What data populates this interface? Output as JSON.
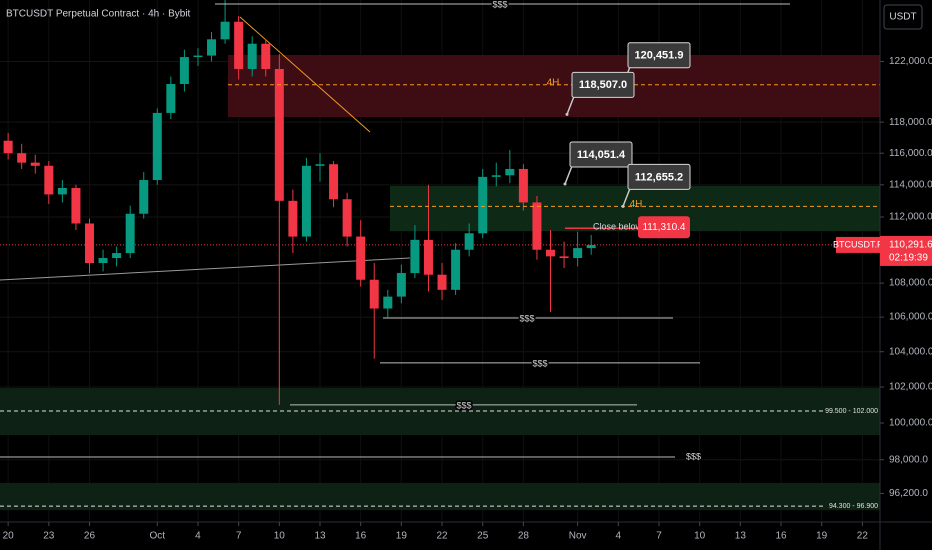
{
  "chart_data": {
    "type": "candlestick",
    "title": "BTCUSDT Perpetual Contract · 4h · Bybit",
    "currency": "USDT",
    "x": [
      0,
      1,
      2,
      3,
      4,
      5,
      6,
      7,
      8,
      9,
      10,
      11,
      12,
      13,
      14,
      15,
      16,
      17,
      18,
      19,
      20,
      21,
      22,
      23,
      24,
      25,
      26,
      27,
      28,
      29,
      30,
      31,
      32,
      33,
      34,
      35,
      36,
      37,
      38,
      39,
      40,
      41,
      42,
      43
    ],
    "open": [
      116800,
      116000,
      115400,
      115200,
      113400,
      113800,
      111600,
      109200,
      109500,
      109800,
      112200,
      114300,
      118600,
      120500,
      122300,
      122400,
      123500,
      124700,
      121500,
      123200,
      121500,
      113000,
      110800,
      115200,
      115300,
      113100,
      110800,
      108200,
      106500,
      107200,
      108600,
      110600,
      108500,
      107600,
      110000,
      111000,
      114500,
      114600,
      115000,
      112900,
      110000,
      109600,
      109500,
      110100
    ],
    "high": [
      117300,
      116600,
      115900,
      115500,
      114300,
      114000,
      111900,
      110000,
      110200,
      112700,
      114800,
      118900,
      121000,
      122800,
      122900,
      124000,
      126200,
      125100,
      123700,
      123500,
      122500,
      113700,
      115700,
      116000,
      115500,
      113500,
      111800,
      109200,
      107600,
      109100,
      111500,
      114000,
      109200,
      110400,
      111600,
      115000,
      115400,
      116200,
      115300,
      113300,
      111200,
      110500,
      111100,
      110900
    ],
    "low": [
      115600,
      115000,
      114700,
      112800,
      112900,
      111200,
      108600,
      108700,
      109000,
      109500,
      111900,
      114000,
      118200,
      120000,
      121700,
      122000,
      123200,
      120800,
      121000,
      121000,
      101000,
      109800,
      110500,
      114200,
      112600,
      110200,
      107800,
      103600,
      106000,
      106800,
      108300,
      107500,
      107000,
      107300,
      109600,
      110700,
      113900,
      114100,
      112400,
      109400,
      106300,
      108900,
      109000,
      109700
    ],
    "close": [
      116000,
      115400,
      115200,
      113400,
      113800,
      111600,
      109200,
      109500,
      109800,
      112200,
      114300,
      118600,
      120500,
      122300,
      122400,
      123500,
      124700,
      121500,
      123200,
      121500,
      113000,
      110800,
      115200,
      115300,
      113100,
      110800,
      108200,
      106500,
      107200,
      108600,
      110600,
      108500,
      107600,
      110000,
      111000,
      114500,
      114600,
      115000,
      112900,
      110000,
      109600,
      109500,
      110100,
      110291.6
    ],
    "up_color": "#089981",
    "down_color": "#f23645",
    "xlim": [
      -0.6,
      64.3
    ],
    "xticks": [
      {
        "value": 0,
        "label": "20"
      },
      {
        "value": 3,
        "label": "23"
      },
      {
        "value": 6,
        "label": "26"
      },
      {
        "value": 11,
        "label": "Oct"
      },
      {
        "value": 14,
        "label": "4"
      },
      {
        "value": 17,
        "label": "7"
      },
      {
        "value": 20,
        "label": "10"
      },
      {
        "value": 23,
        "label": "13"
      },
      {
        "value": 26,
        "label": "16"
      },
      {
        "value": 29,
        "label": "19"
      },
      {
        "value": 32,
        "label": "22"
      },
      {
        "value": 35,
        "label": "25"
      },
      {
        "value": 38,
        "label": "28"
      },
      {
        "value": 42,
        "label": "Nov"
      },
      {
        "value": 45,
        "label": "4"
      },
      {
        "value": 48,
        "label": "7"
      },
      {
        "value": 51,
        "label": "10"
      },
      {
        "value": 54,
        "label": "13"
      },
      {
        "value": 57,
        "label": "16"
      },
      {
        "value": 60,
        "label": "19"
      },
      {
        "value": 63,
        "label": "22"
      }
    ],
    "ylim": [
      94700,
      126200
    ],
    "log_scale": true,
    "grid": true,
    "yticks": [
      {
        "value": 122000,
        "label": "122,000.0"
      },
      {
        "value": 118000,
        "label": "118,000.0"
      },
      {
        "value": 116000,
        "label": "116,000.0"
      },
      {
        "value": 114000,
        "label": "114,000.0"
      },
      {
        "value": 112000,
        "label": "112,000.0"
      },
      {
        "value": 108000,
        "label": "108,000.0"
      },
      {
        "value": 106000,
        "label": "106,000.0"
      },
      {
        "value": 104000,
        "label": "104,000.0"
      },
      {
        "value": 102000,
        "label": "102,000.0"
      },
      {
        "value": 100000,
        "label": "100,000.0"
      },
      {
        "value": 98000,
        "label": "98,000.0"
      },
      {
        "value": 96200,
        "label": "96,200.0"
      }
    ],
    "zones": [
      {
        "from": 118330,
        "to": 122440,
        "color": "#3d0d13"
      },
      {
        "from": 111130,
        "to": 113930,
        "color": "#0e2a17"
      },
      {
        "from": 99340,
        "to": 101940,
        "color": "#0d2214"
      },
      {
        "from": 95320,
        "to": 96760,
        "color": "#0d2214"
      }
    ],
    "levels": [
      {
        "price": 125920,
        "label": "$$$"
      },
      {
        "price": 105950,
        "label": "$$$"
      },
      {
        "price": 103360,
        "label": "$$$"
      },
      {
        "price": 101000,
        "label": "$$$"
      },
      {
        "price": 98150,
        "label": "$$$"
      }
    ],
    "zone_lines": [
      {
        "price": 100660,
        "label": "99.500 - 102.000"
      },
      {
        "price": 95530,
        "label": "94.300 - 96.900"
      }
    ],
    "timeframe_lines": [
      {
        "price": 120451.9,
        "label": "4H"
      },
      {
        "price": 112655.2,
        "label": "4H"
      }
    ],
    "callouts": [
      {
        "value": 120451.9,
        "label": "120,451.9"
      },
      {
        "value": 118507.0,
        "label": "118,507.0"
      },
      {
        "value": 114051.4,
        "label": "114,051.4"
      },
      {
        "value": 112655.2,
        "label": "112,655.2"
      }
    ],
    "close_below": {
      "text": "Close below",
      "value": 111310.4,
      "label": "111,310.4"
    },
    "last_price": {
      "value": 110291.6,
      "label": "110,291.6",
      "symbol": "BTCUSDT.P",
      "countdown": "02:19:39"
    }
  }
}
